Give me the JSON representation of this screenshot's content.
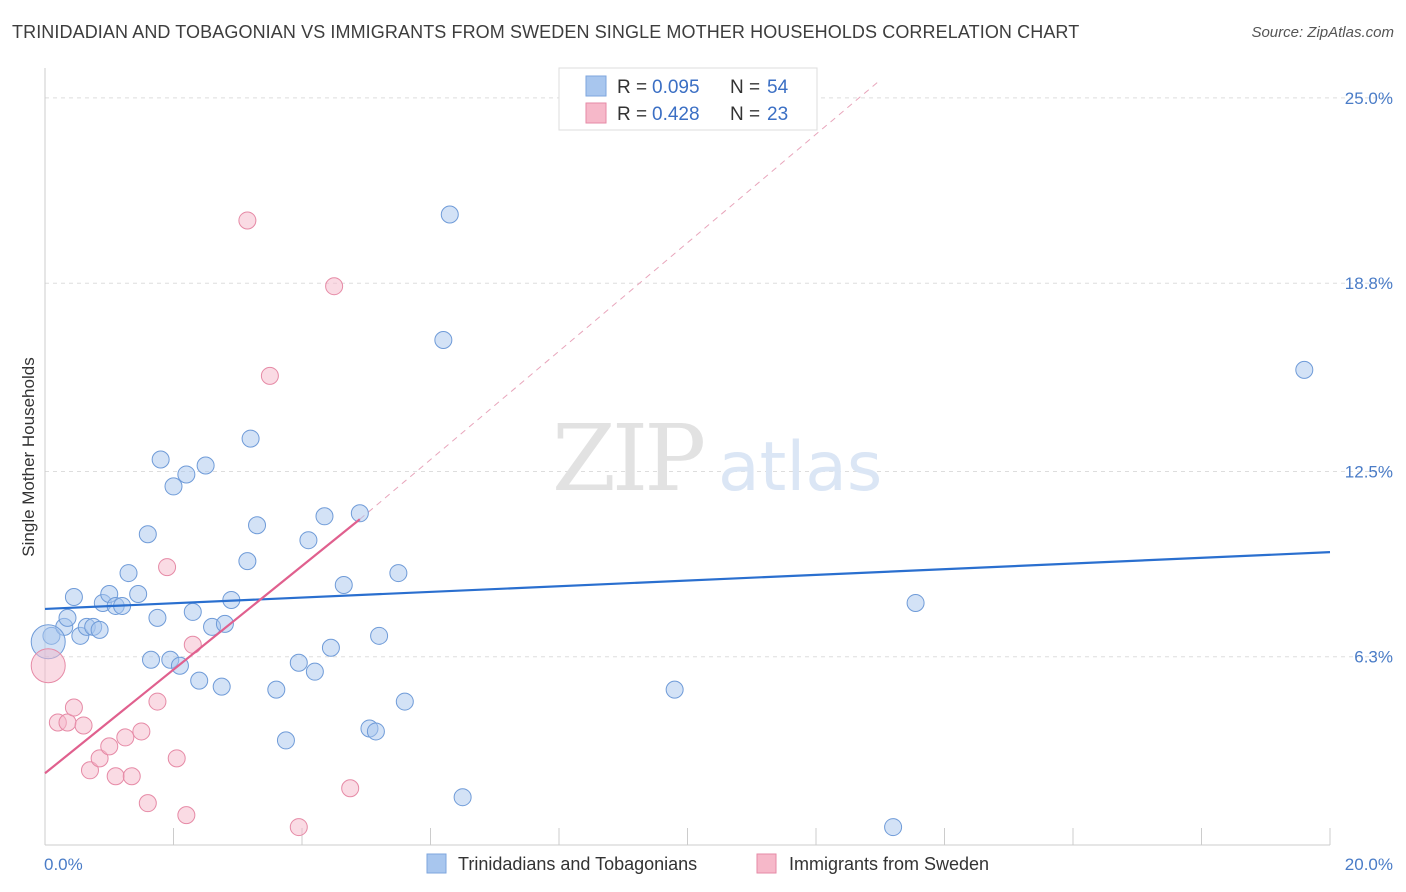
{
  "header": {
    "title": "TRINIDADIAN AND TOBAGONIAN VS IMMIGRANTS FROM SWEDEN SINGLE MOTHER HOUSEHOLDS CORRELATION CHART",
    "source": "Source: ZipAtlas.com"
  },
  "watermark": {
    "zip": "ZIP",
    "atlas": "atlas"
  },
  "legend_top": {
    "r_label": "R =",
    "n_label": "N =",
    "rows": [
      {
        "r": "0.095",
        "n": "54",
        "color": "#a8c6ee"
      },
      {
        "r": "0.428",
        "n": "23",
        "color": "#f6b8c9"
      }
    ]
  },
  "chart_data": {
    "type": "scatter",
    "title": "TRINIDADIAN AND TOBAGONIAN VS IMMIGRANTS FROM SWEDEN SINGLE MOTHER HOUSEHOLDS CORRELATION CHART",
    "xlabel": "",
    "ylabel": "Single Mother Households",
    "xlim": [
      0,
      20
    ],
    "ylim": [
      0,
      25.6
    ],
    "x_tick_labels": [
      "0.0%",
      "20.0%"
    ],
    "y_ticks": [
      {
        "value": 6.3,
        "label": "6.3%"
      },
      {
        "value": 12.5,
        "label": "12.5%"
      },
      {
        "value": 18.8,
        "label": "18.8%"
      },
      {
        "value": 25.0,
        "label": "25.0%"
      }
    ],
    "grid": true,
    "legend_position": "bottom",
    "series": [
      {
        "name": "Trinidadians and Tobagonians",
        "color": "#a8c6ee",
        "stroke": "#6f9bd8",
        "line_color": "#2a6fcf",
        "trend": {
          "x": [
            0,
            20
          ],
          "y": [
            7.9,
            9.8
          ]
        },
        "points": [
          [
            0.1,
            7.0
          ],
          [
            0.3,
            7.3
          ],
          [
            0.35,
            7.6
          ],
          [
            0.45,
            8.3
          ],
          [
            0.55,
            7.0
          ],
          [
            0.65,
            7.3
          ],
          [
            0.75,
            7.3
          ],
          [
            0.85,
            7.2
          ],
          [
            0.9,
            8.1
          ],
          [
            1.0,
            8.4
          ],
          [
            1.1,
            8.0
          ],
          [
            1.2,
            8.0
          ],
          [
            1.3,
            9.1
          ],
          [
            1.45,
            8.4
          ],
          [
            1.6,
            10.4
          ],
          [
            1.65,
            6.2
          ],
          [
            1.75,
            7.6
          ],
          [
            1.8,
            12.9
          ],
          [
            1.95,
            6.2
          ],
          [
            2.0,
            12.0
          ],
          [
            2.1,
            6.0
          ],
          [
            2.2,
            12.4
          ],
          [
            2.3,
            7.8
          ],
          [
            2.4,
            5.5
          ],
          [
            2.5,
            12.7
          ],
          [
            2.6,
            7.3
          ],
          [
            2.75,
            5.3
          ],
          [
            2.8,
            7.4
          ],
          [
            2.9,
            8.2
          ],
          [
            3.15,
            9.5
          ],
          [
            3.2,
            13.6
          ],
          [
            3.3,
            10.7
          ],
          [
            3.6,
            5.2
          ],
          [
            3.75,
            3.5
          ],
          [
            3.95,
            6.1
          ],
          [
            4.1,
            10.2
          ],
          [
            4.2,
            5.8
          ],
          [
            4.35,
            11.0
          ],
          [
            4.45,
            6.6
          ],
          [
            4.65,
            8.7
          ],
          [
            4.9,
            11.1
          ],
          [
            5.05,
            3.9
          ],
          [
            5.15,
            3.8
          ],
          [
            5.2,
            7.0
          ],
          [
            5.5,
            9.1
          ],
          [
            5.6,
            4.8
          ],
          [
            6.2,
            16.9
          ],
          [
            6.3,
            21.1
          ],
          [
            6.5,
            1.6
          ],
          [
            9.8,
            5.2
          ],
          [
            13.2,
            0.6
          ],
          [
            13.55,
            8.1
          ],
          [
            19.6,
            15.9
          ],
          [
            0.05,
            6.8
          ]
        ]
      },
      {
        "name": "Immigrants from Sweden",
        "color": "#f6b8c9",
        "stroke": "#e68aa6",
        "line_color": "#e0608e",
        "trend": {
          "x": [
            0,
            4.9
          ],
          "y": [
            2.4,
            10.9
          ]
        },
        "dashed_extension": {
          "x": [
            4.9,
            13.0
          ],
          "y": [
            10.9,
            25.6
          ]
        },
        "points": [
          [
            0.05,
            6.0
          ],
          [
            0.2,
            4.1
          ],
          [
            0.35,
            4.1
          ],
          [
            0.45,
            4.6
          ],
          [
            0.6,
            4.0
          ],
          [
            0.7,
            2.5
          ],
          [
            0.85,
            2.9
          ],
          [
            1.0,
            3.3
          ],
          [
            1.1,
            2.3
          ],
          [
            1.25,
            3.6
          ],
          [
            1.35,
            2.3
          ],
          [
            1.5,
            3.8
          ],
          [
            1.6,
            1.4
          ],
          [
            1.75,
            4.8
          ],
          [
            1.9,
            9.3
          ],
          [
            2.05,
            2.9
          ],
          [
            2.2,
            1.0
          ],
          [
            2.3,
            6.7
          ],
          [
            3.15,
            20.9
          ],
          [
            3.5,
            15.7
          ],
          [
            3.95,
            0.6
          ],
          [
            4.5,
            18.7
          ],
          [
            4.75,
            1.9
          ]
        ]
      }
    ]
  }
}
